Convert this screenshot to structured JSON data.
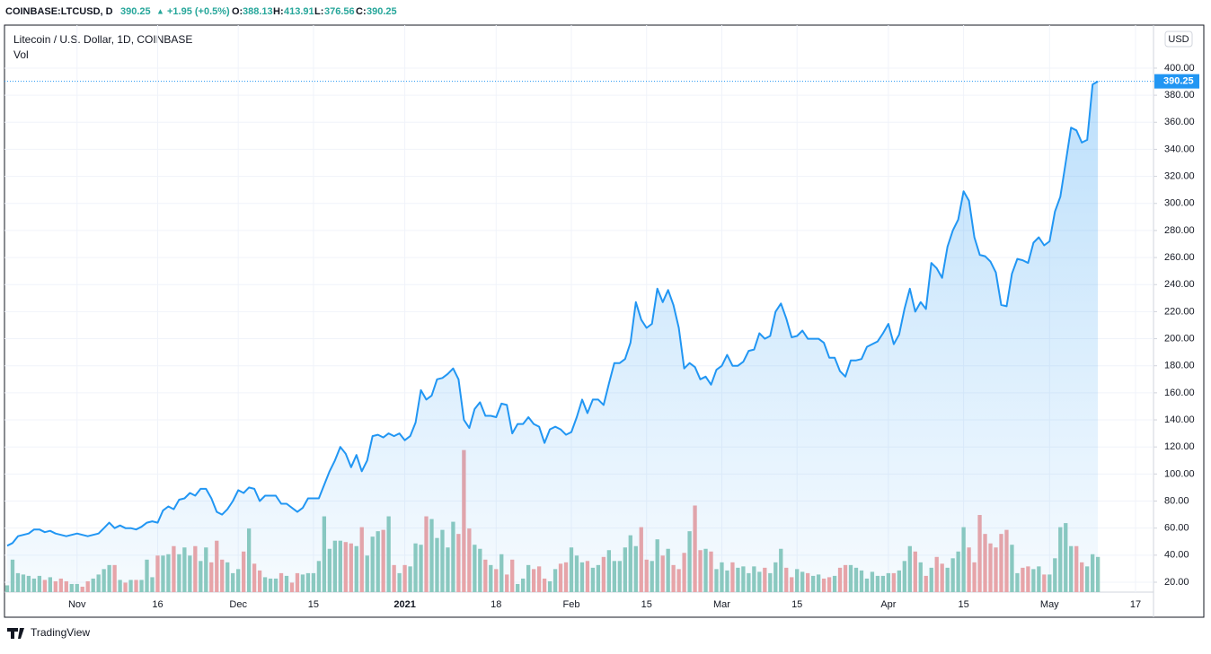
{
  "header": {
    "symbol": "COINBASE:LTCUSD, D",
    "last": "390.25",
    "change": "+1.95 (+0.5%)",
    "o_label": "O:",
    "o": "388.13",
    "h_label": "H:",
    "h": "413.91",
    "l_label": "L:",
    "l": "376.56",
    "c_label": "C:",
    "c": "390.25"
  },
  "chart_data": {
    "type": "line",
    "title": "Litecoin / U.S. Dollar, 1D, COINBASE",
    "volume_label": "Vol",
    "currency": "USD",
    "price_label": "390.25",
    "footer": "TradingView",
    "categories": [
      null,
      null,
      null,
      null,
      null,
      null,
      null,
      null,
      null,
      null,
      null,
      null,
      null,
      "Nov",
      null,
      null,
      null,
      null,
      null,
      null,
      null,
      null,
      null,
      null,
      null,
      null,
      null,
      null,
      "16",
      null,
      null,
      null,
      null,
      null,
      null,
      null,
      null,
      null,
      null,
      null,
      null,
      null,
      null,
      "Dec",
      null,
      null,
      null,
      null,
      null,
      null,
      null,
      null,
      null,
      null,
      null,
      null,
      null,
      "15",
      null,
      null,
      null,
      null,
      null,
      null,
      null,
      null,
      null,
      null,
      null,
      null,
      null,
      null,
      null,
      null,
      "2021",
      null,
      null,
      null,
      null,
      null,
      null,
      null,
      null,
      null,
      null,
      null,
      null,
      null,
      null,
      null,
      null,
      "18",
      null,
      null,
      null,
      null,
      null,
      null,
      null,
      null,
      null,
      null,
      null,
      null,
      null,
      "Feb",
      null,
      null,
      null,
      null,
      null,
      null,
      null,
      null,
      null,
      null,
      null,
      null,
      null,
      "15",
      null,
      null,
      null,
      null,
      null,
      null,
      null,
      null,
      null,
      null,
      null,
      null,
      null,
      "Mar",
      null,
      null,
      null,
      null,
      null,
      null,
      null,
      null,
      null,
      null,
      null,
      null,
      null,
      "15",
      null,
      null,
      null,
      null,
      null,
      null,
      null,
      null,
      null,
      null,
      null,
      null,
      null,
      null,
      null,
      null,
      "Apr",
      null,
      null,
      null,
      null,
      null,
      null,
      null,
      null,
      null,
      null,
      null,
      null,
      null,
      "15",
      null,
      null,
      null,
      null,
      null,
      null,
      null,
      null,
      null,
      null,
      null,
      null,
      null,
      null,
      null,
      "May",
      null,
      null,
      null,
      null,
      null,
      null,
      null,
      null,
      null,
      null,
      null,
      null,
      null,
      null,
      null,
      "17"
    ],
    "series": [
      {
        "name": "LTCUSD",
        "color": "#2196f3",
        "values": [
          47,
          49,
          54,
          55,
          56,
          59,
          59,
          57,
          58,
          56,
          55,
          54,
          55,
          56,
          55,
          54,
          55,
          56,
          60,
          64,
          60,
          62,
          60,
          60,
          59,
          61,
          64,
          65,
          64,
          73,
          76,
          74,
          81,
          82,
          86,
          84,
          89,
          89,
          82,
          72,
          70,
          74,
          80,
          88,
          86,
          90,
          89,
          80,
          84,
          84,
          84,
          78,
          78,
          75,
          72,
          75,
          82,
          82,
          82,
          92,
          102,
          110,
          120,
          115,
          105,
          114,
          102,
          110,
          128,
          129,
          127,
          130,
          128,
          130,
          125,
          128,
          138,
          162,
          155,
          158,
          170,
          171,
          174,
          178,
          170,
          140,
          134,
          148,
          153,
          143,
          143,
          142,
          152,
          151,
          130,
          137,
          137,
          142,
          137,
          135,
          123,
          133,
          135,
          133,
          129,
          131,
          142,
          155,
          145,
          155,
          155,
          151,
          167,
          182,
          182,
          185,
          197,
          227,
          214,
          208,
          211,
          237,
          227,
          236,
          225,
          208,
          178,
          182,
          179,
          170,
          172,
          166,
          177,
          180,
          188,
          180,
          180,
          183,
          191,
          192,
          204,
          200,
          202,
          220,
          226,
          215,
          201,
          202,
          206,
          200,
          200,
          200,
          197,
          186,
          186,
          176,
          172,
          184,
          184,
          185,
          194,
          196,
          198,
          204,
          211,
          196,
          203,
          222,
          237,
          220,
          227,
          222,
          256,
          252,
          245,
          268,
          280,
          288,
          309,
          302,
          275,
          262,
          261,
          257,
          249,
          225,
          224,
          248,
          259,
          258,
          256,
          271,
          275,
          269,
          272,
          294,
          305,
          330,
          356,
          354,
          345,
          347,
          388,
          390.25,
          null,
          null,
          null,
          null,
          null,
          null,
          null
        ]
      },
      {
        "name": "Vol",
        "axis": "y2",
        "up_color": "#8fcbbd",
        "down_color": "#f0a5a5",
        "values": [
          5,
          24,
          14,
          13,
          12,
          10,
          12,
          9,
          11,
          8,
          10,
          8,
          6,
          6,
          4,
          8,
          10,
          13,
          17,
          20,
          20,
          9,
          7,
          9,
          9,
          9,
          24,
          11,
          27,
          27,
          28,
          34,
          28,
          33,
          27,
          34,
          23,
          33,
          22,
          38,
          24,
          22,
          14,
          17,
          30,
          47,
          21,
          16,
          11,
          10,
          10,
          14,
          12,
          7,
          14,
          13,
          14,
          14,
          23,
          56,
          32,
          38,
          38,
          37,
          36,
          34,
          48,
          27,
          41,
          45,
          46,
          56,
          20,
          14,
          20,
          19,
          36,
          35,
          56,
          54,
          40,
          46,
          33,
          52,
          43,
          105,
          47,
          35,
          32,
          24,
          20,
          17,
          28,
          13,
          24,
          6,
          10,
          20,
          17,
          19,
          10,
          8,
          17,
          21,
          22,
          33,
          27,
          22,
          23,
          18,
          20,
          26,
          31,
          23,
          23,
          33,
          42,
          34,
          48,
          24,
          23,
          39,
          27,
          32,
          20,
          17,
          29,
          45,
          64,
          31,
          32,
          30,
          17,
          22,
          16,
          22,
          18,
          19,
          14,
          19,
          15,
          18,
          14,
          22,
          32,
          18,
          11,
          17,
          15,
          14,
          12,
          13,
          10,
          11,
          12,
          18,
          20,
          20,
          18,
          16,
          10,
          15,
          12,
          12,
          14,
          14,
          16,
          23,
          34,
          30,
          22,
          12,
          18,
          26,
          21,
          18,
          25,
          30,
          48,
          33,
          22,
          57,
          43,
          36,
          33,
          43,
          46,
          35,
          14,
          18,
          19,
          17,
          19,
          13,
          13,
          25,
          48,
          51,
          34,
          34,
          22,
          19,
          28,
          26,
          null,
          null,
          null,
          null,
          null,
          null,
          null
        ]
      }
    ],
    "ylim": [
      12.7,
      431.8
    ],
    "y2lim": [
      0,
      419.1
    ],
    "yticks": [
      {
        "value": 20,
        "label": "20.00"
      },
      {
        "value": 40,
        "label": "40.00"
      },
      {
        "value": 60,
        "label": "60.00"
      },
      {
        "value": 80,
        "label": "80.00"
      },
      {
        "value": 100,
        "label": "100.00"
      },
      {
        "value": 120,
        "label": "120.00"
      },
      {
        "value": 140,
        "label": "140.00"
      },
      {
        "value": 160,
        "label": "160.00"
      },
      {
        "value": 180,
        "label": "180.00"
      },
      {
        "value": 200,
        "label": "200.00"
      },
      {
        "value": 220,
        "label": "220.00"
      },
      {
        "value": 240,
        "label": "240.00"
      },
      {
        "value": 260,
        "label": "260.00"
      },
      {
        "value": 280,
        "label": "280.00"
      },
      {
        "value": 300,
        "label": "300.00"
      },
      {
        "value": 320,
        "label": "320.00"
      },
      {
        "value": 340,
        "label": "340.00"
      },
      {
        "value": 360,
        "label": "360.00"
      },
      {
        "value": 380,
        "label": "380.00"
      },
      {
        "value": 400,
        "label": "400.00"
      }
    ],
    "grid": true
  }
}
